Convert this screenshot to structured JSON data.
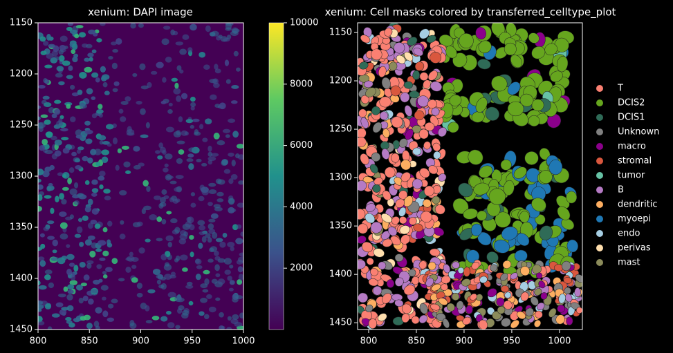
{
  "chart_data": [
    {
      "type": "image",
      "title": "xenium: DAPI image",
      "xlim": [
        800,
        1000
      ],
      "xticks": [
        800,
        850,
        900,
        950,
        1000
      ],
      "ylim": [
        1450,
        1150
      ],
      "yticks": [
        1150,
        1200,
        1250,
        1300,
        1350,
        1400,
        1450
      ],
      "colorbar": {
        "lim": [
          0,
          10000
        ],
        "ticks": [
          2000,
          4000,
          6000,
          8000,
          10000
        ],
        "colormap": "viridis"
      }
    },
    {
      "type": "image",
      "title": "xenium: Cell masks colored by transferred_celltype_plot",
      "xlim": [
        788.4,
        1024
      ],
      "xticks": [
        800,
        850,
        900,
        950,
        1000
      ],
      "ylim": [
        1457,
        1140
      ],
      "yticks": [
        1150,
        1200,
        1250,
        1300,
        1350,
        1400,
        1450
      ],
      "legend": "right",
      "series": [
        {
          "name": "T",
          "color": "#fa8072"
        },
        {
          "name": "DCIS2",
          "color": "#66a61e"
        },
        {
          "name": "DCIS1",
          "color": "#2f6b57"
        },
        {
          "name": "Unknown",
          "color": "#808080"
        },
        {
          "name": "macro",
          "color": "#8b008b"
        },
        {
          "name": "stromal",
          "color": "#d9573e"
        },
        {
          "name": "tumor",
          "color": "#66c2a5"
        },
        {
          "name": "B",
          "color": "#b57ac4"
        },
        {
          "name": "dendritic",
          "color": "#fdae61"
        },
        {
          "name": "myoepi",
          "color": "#1f78b4"
        },
        {
          "name": "endo",
          "color": "#a6cee3"
        },
        {
          "name": "perivas",
          "color": "#ffdead"
        },
        {
          "name": "mast",
          "color": "#8b8b5a"
        }
      ]
    }
  ]
}
